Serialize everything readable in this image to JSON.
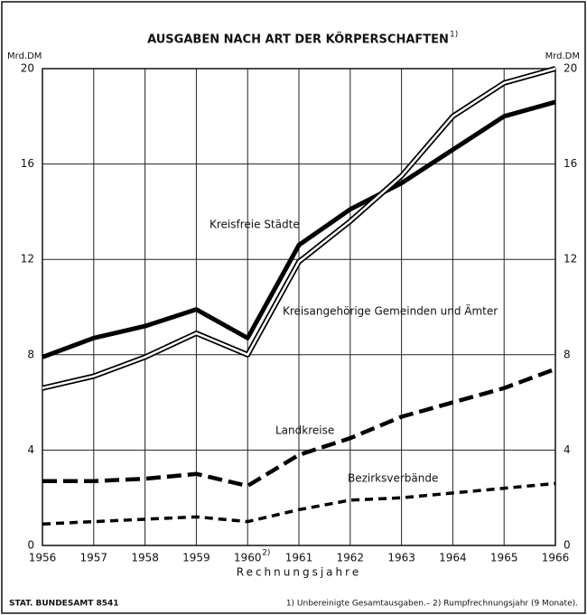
{
  "chart_data": {
    "type": "line",
    "title": "AUSGABEN NACH ART DER KÖRPERSCHAFTEN",
    "title_note": "1)",
    "ylabel": "Mrd.DM",
    "xlabel": "Rechnungsjahre",
    "source": "STAT. BUNDESAMT 8541",
    "footnote": "1) Unbereinigte Gesamtausgaben.– 2) Rumpfrechnungsjahr (9 Monate).",
    "x": [
      1956,
      1957,
      1958,
      1959,
      1960,
      1961,
      1962,
      1963,
      1964,
      1965,
      1966
    ],
    "xlim": [
      1956,
      1966
    ],
    "xticks": [
      1956,
      1957,
      1958,
      1959,
      {
        "value": 1960,
        "label": "1960",
        "note": "2)"
      },
      1961,
      1962,
      1963,
      1964,
      1965,
      1966
    ],
    "ylim": [
      0,
      20
    ],
    "yticks": [
      0,
      4,
      8,
      12,
      16,
      20
    ],
    "grid": true,
    "series": [
      {
        "name": "Kreisfreie Städte",
        "color": "#000000",
        "style": "solid",
        "values": [
          7.9,
          8.7,
          9.2,
          9.9,
          8.7,
          12.6,
          14.1,
          15.2,
          16.6,
          18.0,
          18.6
        ]
      },
      {
        "name": "Kreisangehörige Gemeinden und Ämter",
        "color": "#000000",
        "style": "double",
        "values": [
          6.6,
          7.1,
          7.9,
          8.9,
          8.0,
          11.9,
          13.6,
          15.5,
          18.0,
          19.4,
          20.0
        ]
      },
      {
        "name": "Landkreise",
        "color": "#000000",
        "style": "dashed",
        "values": [
          2.7,
          2.7,
          2.8,
          3.0,
          2.5,
          3.8,
          4.5,
          5.4,
          6.0,
          6.6,
          7.4
        ]
      },
      {
        "name": "Bezirksverbände",
        "color": "#000000",
        "style": "dotted",
        "values": [
          0.9,
          1.0,
          1.1,
          1.2,
          1.0,
          1.5,
          1.9,
          2.0,
          2.2,
          2.4,
          2.6
        ]
      }
    ]
  }
}
